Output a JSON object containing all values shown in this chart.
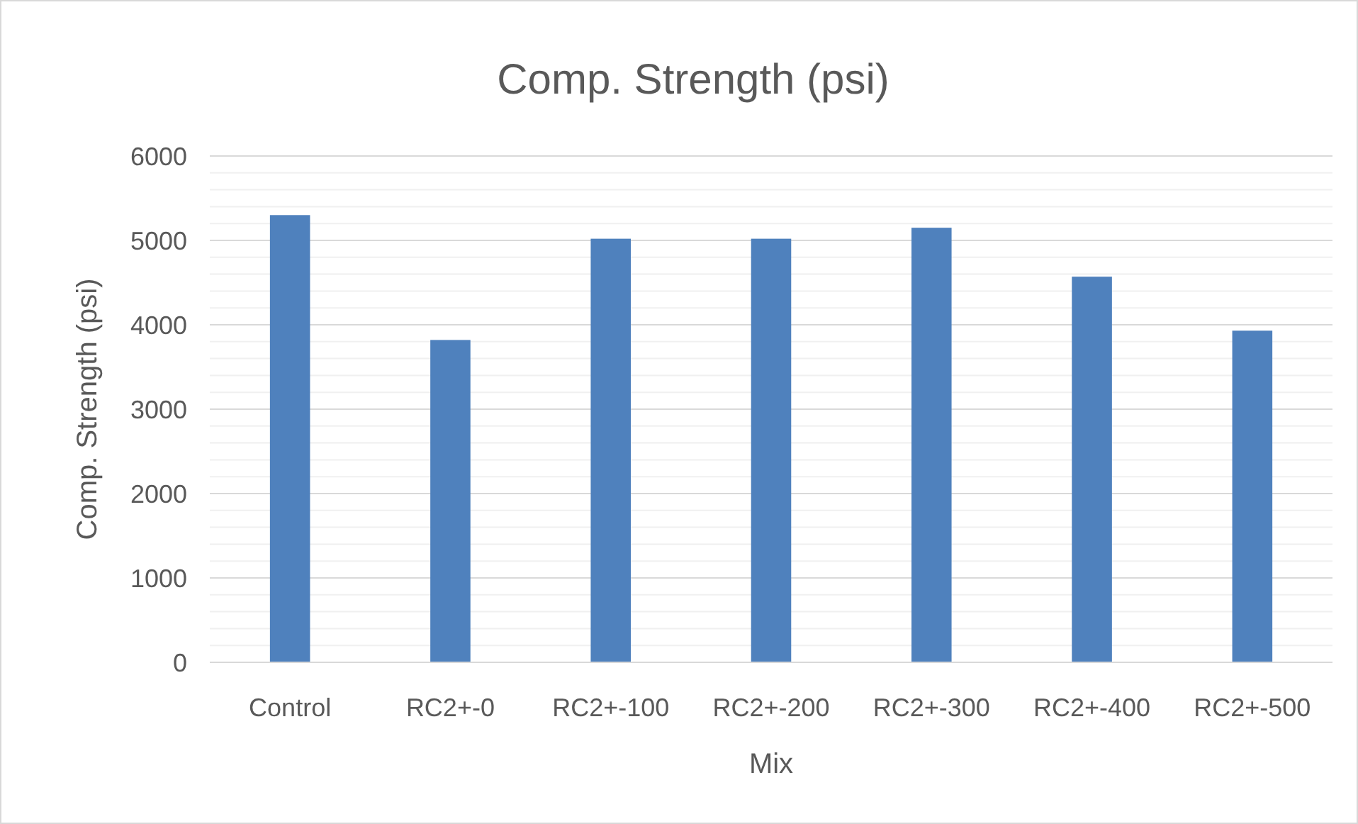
{
  "chart_data": {
    "type": "bar",
    "title": "Comp. Strength (psi)",
    "xlabel": "Mix",
    "ylabel": "Comp. Strength (psi)",
    "categories": [
      "Control",
      "RC2+-0",
      "RC2+-100",
      "RC2+-200",
      "RC2+-300",
      "RC2+-400",
      "RC2+-500"
    ],
    "values": [
      5300,
      3820,
      5020,
      5020,
      5150,
      4570,
      3930
    ],
    "color": "#4f81bd",
    "ylim": [
      0,
      6000
    ],
    "yticks": [
      0,
      {
        "value": 200,
        "label": null
      },
      {
        "value": 400,
        "label": null
      },
      {
        "value": 600,
        "label": null
      },
      {
        "value": 800,
        "label": null
      },
      1000,
      {
        "value": 1200,
        "label": null
      },
      {
        "value": 1400,
        "label": null
      },
      {
        "value": 1600,
        "label": null
      },
      {
        "value": 1800,
        "label": null
      },
      2000,
      {
        "value": 2200,
        "label": null
      },
      {
        "value": 2400,
        "label": null
      },
      {
        "value": 2600,
        "label": null
      },
      {
        "value": 2800,
        "label": null
      },
      3000,
      {
        "value": 3200,
        "label": null
      },
      {
        "value": 3400,
        "label": null
      },
      {
        "value": 3600,
        "label": null
      },
      {
        "value": 3800,
        "label": null
      },
      4000,
      {
        "value": 4200,
        "label": null
      },
      {
        "value": 4400,
        "label": null
      },
      {
        "value": 4600,
        "label": null
      },
      {
        "value": 4800,
        "label": null
      },
      5000,
      {
        "value": 5200,
        "label": null
      },
      {
        "value": 5400,
        "label": null
      },
      {
        "value": 5600,
        "label": null
      },
      {
        "value": 5800,
        "label": null
      },
      6000
    ],
    "grid": "y"
  }
}
